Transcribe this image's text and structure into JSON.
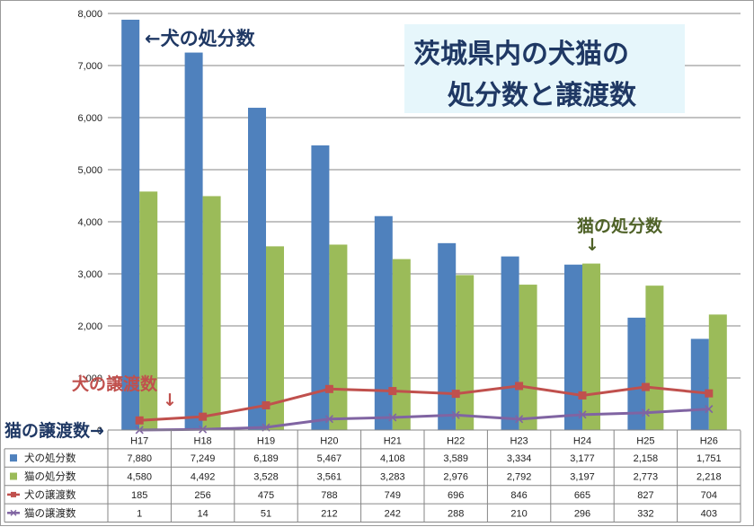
{
  "chart_data": {
    "type": "bar",
    "title_lines": [
      "茨城県内の犬猫の",
      "処分数と譲渡数"
    ],
    "categories": [
      "H17",
      "H18",
      "H19",
      "H20",
      "H21",
      "H22",
      "H23",
      "H24",
      "H25",
      "H26"
    ],
    "ylim": [
      0,
      8000
    ],
    "yticks": [
      "0",
      "1,000",
      "2,000",
      "3,000",
      "4,000",
      "5,000",
      "6,000",
      "7,000",
      "8,000"
    ],
    "grid": true,
    "series": [
      {
        "name": "犬の処分数",
        "kind": "bar",
        "color": "#4f81bd",
        "values": [
          7880,
          7249,
          6189,
          5467,
          4108,
          3589,
          3334,
          3177,
          2158,
          1751
        ],
        "display": [
          "7,880",
          "7,249",
          "6,189",
          "5,467",
          "4,108",
          "3,589",
          "3,334",
          "3,177",
          "2,158",
          "1,751"
        ]
      },
      {
        "name": "猫の処分数",
        "kind": "bar",
        "color": "#9bbb59",
        "values": [
          4580,
          4492,
          3528,
          3561,
          3283,
          2976,
          2792,
          3197,
          2773,
          2218
        ],
        "display": [
          "4,580",
          "4,492",
          "3,528",
          "3,561",
          "3,283",
          "2,976",
          "2,792",
          "3,197",
          "2,773",
          "2,218"
        ]
      },
      {
        "name": "犬の譲渡数",
        "kind": "line",
        "marker": "square",
        "color": "#c0504d",
        "values": [
          185,
          256,
          475,
          788,
          749,
          696,
          846,
          665,
          827,
          704
        ],
        "display": [
          "185",
          "256",
          "475",
          "788",
          "749",
          "696",
          "846",
          "665",
          "827",
          "704"
        ]
      },
      {
        "name": "猫の譲渡数",
        "kind": "line",
        "marker": "x",
        "color": "#8064a2",
        "values": [
          1,
          14,
          51,
          212,
          242,
          288,
          210,
          296,
          332,
          403
        ],
        "display": [
          "1",
          "14",
          "51",
          "212",
          "242",
          "288",
          "210",
          "296",
          "332",
          "403"
        ]
      }
    ],
    "annotations": {
      "dog_disposal": "←犬の処分数",
      "cat_disposal": "猫の処分数",
      "dog_transfer": "犬の譲渡数",
      "cat_transfer": "猫の譲渡数→",
      "down_arrow": "↓"
    }
  }
}
